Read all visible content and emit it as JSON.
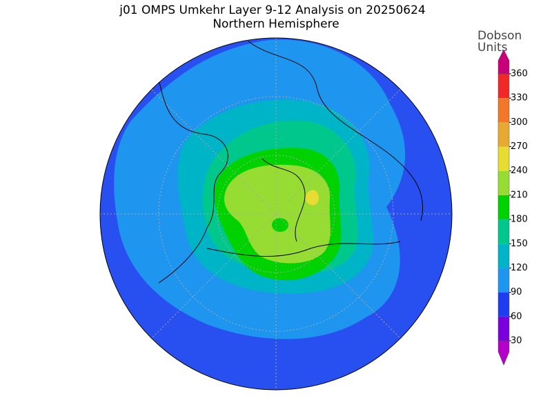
{
  "title": "j01 OMPS Umkehr Layer 9-12 Analysis on 20250624",
  "subtitle": "Northern Hemisphere",
  "colorbar": {
    "label_lines": [
      "Dobson",
      "Units"
    ],
    "ticks": [
      30,
      60,
      90,
      120,
      150,
      180,
      210,
      240,
      270,
      300,
      330,
      360
    ],
    "colors": [
      "#b400c8",
      "#7a00dc",
      "#1e3cf0",
      "#1e96f0",
      "#00b4c8",
      "#00c88c",
      "#00d200",
      "#96dc32",
      "#e6dc32",
      "#e6aa32",
      "#f07828",
      "#f02828",
      "#c8007a"
    ]
  }
}
